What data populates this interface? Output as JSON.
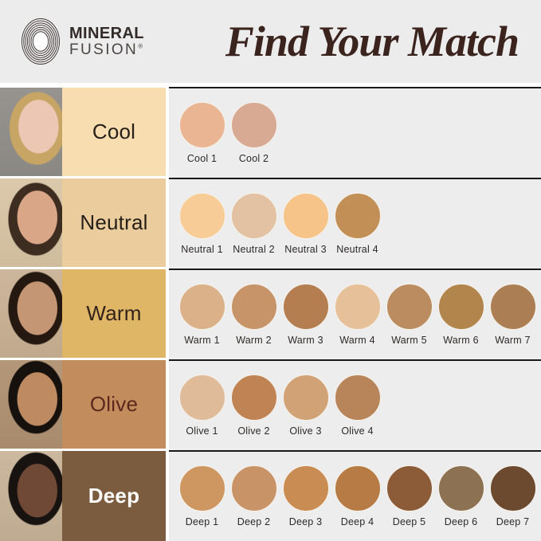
{
  "header": {
    "brand": {
      "line1": "MINERAL",
      "line2": "FUSION",
      "registered": "®"
    },
    "title": "Find Your Match"
  },
  "colors": {
    "header_bg": "#ececec",
    "panel_bg": "#ededee",
    "divider": "#191919",
    "title_color": "#3b241e",
    "swatch_label_color": "#2d2a28",
    "logo_color": "#3a3330"
  },
  "rows": [
    {
      "category": "Cool",
      "label_bg": "#f8ddb0",
      "label_color": "#262019",
      "swatches": [
        {
          "name": "Cool 1",
          "color": "#eab593"
        },
        {
          "name": "Cool 2",
          "color": "#d8aa93"
        }
      ]
    },
    {
      "category": "Neutral",
      "label_bg": "#ebcd9d",
      "label_color": "#27201a",
      "swatches": [
        {
          "name": "Neutral 1",
          "color": "#f7cc96"
        },
        {
          "name": "Neutral 2",
          "color": "#e2c2a2"
        },
        {
          "name": "Neutral 3",
          "color": "#f6c389"
        },
        {
          "name": "Neutral 4",
          "color": "#c28f56"
        }
      ]
    },
    {
      "category": "Warm",
      "label_bg": "#dfb566",
      "label_color": "#33231a",
      "swatches": [
        {
          "name": "Warm 1",
          "color": "#dab189"
        },
        {
          "name": "Warm 2",
          "color": "#c79469"
        },
        {
          "name": "Warm 3",
          "color": "#b47e51"
        },
        {
          "name": "Warm 4",
          "color": "#e5c098"
        },
        {
          "name": "Warm 5",
          "color": "#ba8c5f"
        },
        {
          "name": "Warm 6",
          "color": "#b1854b"
        },
        {
          "name": "Warm 7",
          "color": "#ac7e54"
        }
      ]
    },
    {
      "category": "Olive",
      "label_bg": "#c28c5c",
      "label_color": "#5c291d",
      "swatches": [
        {
          "name": "Olive 1",
          "color": "#dfbb99"
        },
        {
          "name": "Olive 2",
          "color": "#bf8354"
        },
        {
          "name": "Olive 3",
          "color": "#d1a276"
        },
        {
          "name": "Olive 4",
          "color": "#b8845a"
        }
      ]
    },
    {
      "category": "Deep",
      "label_bg": "#7c5c3e",
      "label_color": "#ffffff",
      "swatches": [
        {
          "name": "Deep 1",
          "color": "#ce9661"
        },
        {
          "name": "Deep 2",
          "color": "#c79367"
        },
        {
          "name": "Deep 3",
          "color": "#c98d54"
        },
        {
          "name": "Deep 4",
          "color": "#b77c45"
        },
        {
          "name": "Deep 5",
          "color": "#8c5c38"
        },
        {
          "name": "Deep 6",
          "color": "#8c7253"
        },
        {
          "name": "Deep 7",
          "color": "#6b4a30"
        }
      ]
    }
  ]
}
